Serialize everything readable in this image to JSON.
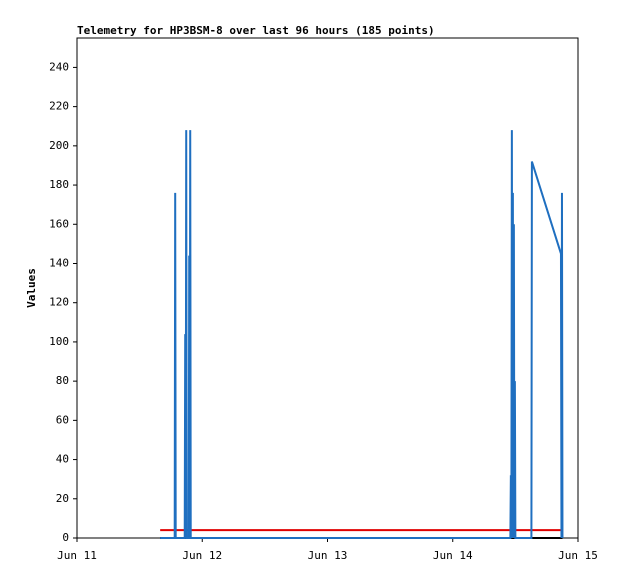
{
  "chart_data": {
    "type": "line",
    "title": "Telemetry for HP3BSM-8 over last 96 hours (185 points)",
    "y_label": "Values",
    "xlim": [
      0,
      4
    ],
    "xticks": [
      {
        "value": 0,
        "label": "Jun 11"
      },
      {
        "value": 1,
        "label": "Jun 12"
      },
      {
        "value": 2,
        "label": "Jun 13"
      },
      {
        "value": 3,
        "label": "Jun 14"
      },
      {
        "value": 4,
        "label": "Jun 15"
      }
    ],
    "ylim": [
      0,
      255
    ],
    "yticks": [
      0,
      20,
      40,
      60,
      80,
      100,
      120,
      140,
      160,
      180,
      200,
      220,
      240
    ],
    "grid": false,
    "series": [
      {
        "color": "#000000",
        "x": [
          0.664,
          3.876
        ],
        "values": [
          0,
          0
        ]
      },
      {
        "color": "#e00000",
        "x": [
          0.664,
          3.876
        ],
        "values": [
          4,
          4
        ]
      },
      {
        "color": "#1f6fc0",
        "x": [
          0.664,
          0.78,
          0.784,
          0.788,
          0.86,
          0.864,
          0.868,
          0.872,
          0.876,
          0.892,
          0.896,
          0.9,
          0.904,
          0.908,
          3.46,
          3.464,
          3.468,
          3.472,
          3.476,
          3.48,
          3.484,
          3.488,
          3.492,
          3.496,
          3.5,
          3.628,
          3.632,
          3.864,
          3.868,
          3.872,
          3.876
        ],
        "values": [
          0,
          0,
          176,
          0,
          0,
          104,
          0,
          208,
          0,
          0,
          144,
          0,
          208,
          0,
          0,
          32,
          0,
          208,
          0,
          176,
          0,
          160,
          0,
          80,
          0,
          0,
          192,
          145,
          0,
          176,
          0
        ]
      }
    ]
  }
}
